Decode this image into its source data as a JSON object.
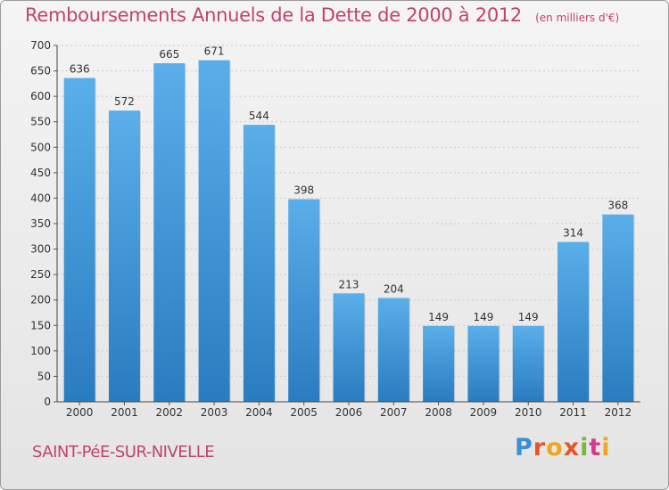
{
  "header": {
    "title": "Remboursements Annuels de la Dette de 2000 à 2012",
    "subtitle": "(en milliers d'€)"
  },
  "footer": {
    "place": "SAINT-PéE-SUR-NIVELLE",
    "logo": "Proxiti"
  },
  "colors": {
    "bar_top": "#5aaee9",
    "bar_bottom": "#2a7cc0",
    "title": "#c0436f"
  },
  "chart_data": {
    "type": "bar",
    "title": "Remboursements Annuels de la Dette de 2000 à 2012",
    "subtitle": "(en milliers d'€)",
    "categories": [
      "2000",
      "2001",
      "2002",
      "2003",
      "2004",
      "2005",
      "2006",
      "2007",
      "2008",
      "2009",
      "2010",
      "2011",
      "2012"
    ],
    "values": [
      636,
      572,
      665,
      671,
      544,
      398,
      213,
      204,
      149,
      149,
      149,
      314,
      368
    ],
    "ylim": [
      0,
      700
    ],
    "yticks": [
      0,
      50,
      100,
      150,
      200,
      250,
      300,
      350,
      400,
      450,
      500,
      550,
      600,
      650,
      700
    ],
    "grid": true
  }
}
